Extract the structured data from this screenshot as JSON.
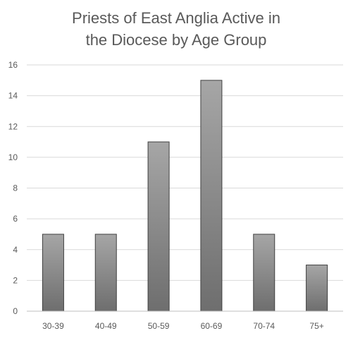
{
  "chart_data": {
    "type": "bar",
    "title_lines": [
      "Priests of East Anglia Active in",
      "the Diocese by Age Group"
    ],
    "categories": [
      "30-39",
      "40-49",
      "50-59",
      "60-69",
      "70-74",
      "75+"
    ],
    "values": [
      5,
      5,
      11,
      15,
      5,
      3
    ],
    "ylim": [
      0,
      16
    ],
    "yticks": [
      0,
      2,
      4,
      6,
      8,
      10,
      12,
      14,
      16
    ],
    "xlabel": "",
    "ylabel": "",
    "grid": true,
    "legend": "none",
    "colors": {
      "bar_top": "#a6a6a6",
      "bar_bottom": "#6e6e6e",
      "bar_border": "#404040",
      "grid": "#d9d9d9",
      "text": "#595959"
    }
  }
}
